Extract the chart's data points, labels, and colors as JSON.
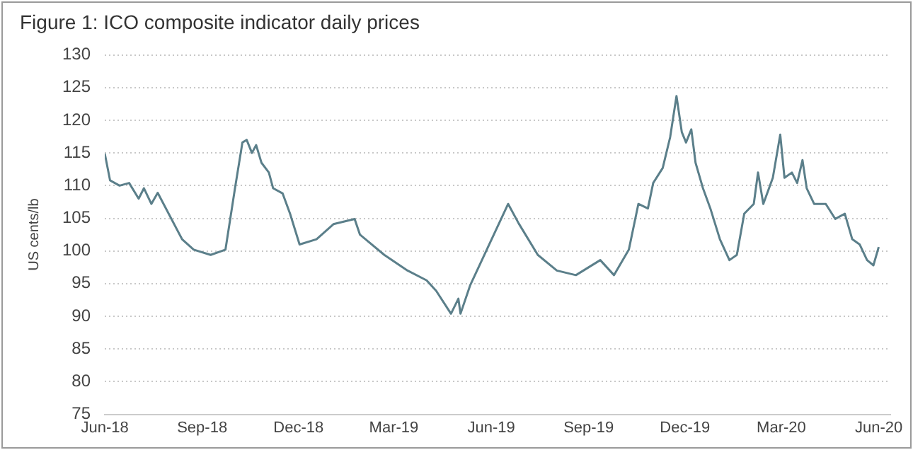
{
  "chart_data": {
    "type": "line",
    "title": "Figure 1: ICO composite indicator daily prices",
    "ylabel": "US cents/lb",
    "x": [
      "2018-06-01",
      "2018-06-06",
      "2018-06-15",
      "2018-06-24",
      "2018-07-03",
      "2018-07-08",
      "2018-07-15",
      "2018-07-21",
      "2018-08-13",
      "2018-08-24",
      "2018-09-09",
      "2018-09-23",
      "2018-10-02",
      "2018-10-09",
      "2018-10-13",
      "2018-10-18",
      "2018-10-22",
      "2018-10-27",
      "2018-11-03",
      "2018-11-07",
      "2018-11-16",
      "2018-11-23",
      "2018-12-02",
      "2018-12-18",
      "2019-01-03",
      "2019-01-23",
      "2019-01-28",
      "2019-02-20",
      "2019-03-14",
      "2019-04-01",
      "2019-04-10",
      "2019-04-24",
      "2019-05-01",
      "2019-05-03",
      "2019-05-12",
      "2019-06-17",
      "2019-06-27",
      "2019-07-15",
      "2019-08-02",
      "2019-08-20",
      "2019-09-12",
      "2019-09-25",
      "2019-10-09",
      "2019-10-18",
      "2019-10-27",
      "2019-11-01",
      "2019-11-10",
      "2019-11-17",
      "2019-11-23",
      "2019-11-28",
      "2019-12-02",
      "2019-12-07",
      "2019-12-11",
      "2019-12-18",
      "2019-12-25",
      "2020-01-03",
      "2020-01-12",
      "2020-01-19",
      "2020-01-26",
      "2020-02-04",
      "2020-02-08",
      "2020-02-13",
      "2020-02-22",
      "2020-02-29",
      "2020-03-04",
      "2020-03-11",
      "2020-03-16",
      "2020-03-21",
      "2020-03-25",
      "2020-04-01",
      "2020-04-12",
      "2020-04-21",
      "2020-04-30",
      "2020-05-07",
      "2020-05-14",
      "2020-05-21",
      "2020-05-27",
      "2020-06-01"
    ],
    "series": [
      {
        "color": "#5b7f8a",
        "values": [
          114.9,
          110.8,
          110,
          110.4,
          108,
          109.6,
          107.2,
          108.9,
          101.8,
          100.2,
          99.4,
          100.2,
          109.6,
          116.6,
          117,
          115,
          116.2,
          113.5,
          112,
          109.6,
          108.8,
          105.7,
          101,
          101.8,
          104.1,
          104.9,
          102.5,
          99.4,
          97,
          95.5,
          93.9,
          90.4,
          92.7,
          90.4,
          94.7,
          107.2,
          104.2,
          99.4,
          97,
          96.3,
          98.6,
          96.3,
          100.2,
          107.2,
          106.5,
          110.4,
          112.7,
          117.4,
          123.7,
          118.2,
          116.6,
          118.6,
          113.5,
          109.6,
          106.5,
          101.8,
          98.6,
          99.4,
          105.7,
          107.2,
          112,
          107.2,
          111.2,
          117.8,
          111.2,
          112,
          110.4,
          113.9,
          109.6,
          107.2,
          107.2,
          104.9,
          105.7,
          101.8,
          101,
          98.6,
          97.8,
          100.6
        ]
      }
    ],
    "xlim": [
      "2018-06-01",
      "2020-06-12"
    ],
    "xticks": [
      {
        "value": "2018-06-01",
        "label": "Jun-18"
      },
      {
        "value": "2018-09-01",
        "label": "Sep-18"
      },
      {
        "value": "2018-12-01",
        "label": "Dec-18"
      },
      {
        "value": "2019-03-01",
        "label": "Mar-19"
      },
      {
        "value": "2019-06-01",
        "label": "Jun-19"
      },
      {
        "value": "2019-09-01",
        "label": "Sep-19"
      },
      {
        "value": "2019-12-01",
        "label": "Dec-19"
      },
      {
        "value": "2020-03-01",
        "label": "Mar-20"
      },
      {
        "value": "2020-06-01",
        "label": "Jun-20"
      }
    ],
    "ylim": [
      75,
      130
    ],
    "yticks": [
      75,
      80,
      85,
      90,
      95,
      100,
      105,
      110,
      115,
      120,
      125,
      130
    ],
    "grid": "y",
    "legend": false,
    "marker": "none",
    "line_style": "solid"
  }
}
